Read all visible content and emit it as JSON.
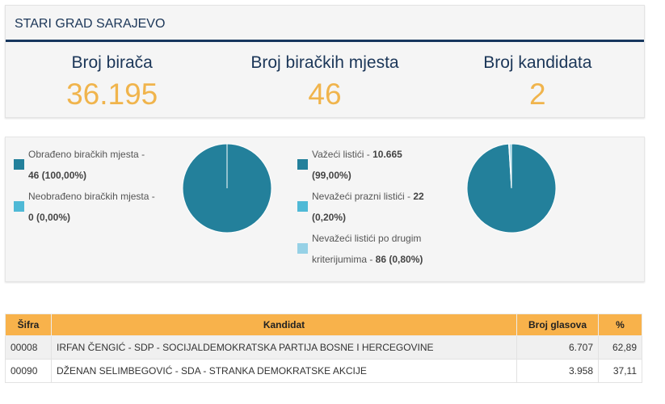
{
  "header": {
    "title": "STARI GRAD SARAJEVO"
  },
  "stats": [
    {
      "label": "Broj birača",
      "value": "36.195"
    },
    {
      "label": "Broj biračkih mjesta",
      "value": "46"
    },
    {
      "label": "Broj kandidata",
      "value": "2"
    }
  ],
  "colors": {
    "accent": "#f0b44c",
    "navy": "#17375e",
    "teal": "#23809b",
    "light_blue": "#4fb9d6",
    "pale_blue": "#96d1e6"
  },
  "chart_data": [
    {
      "type": "pie",
      "series": [
        {
          "label_line1": "Obrađeno biračkih mjesta -",
          "label_line2": "46 (100,00%)",
          "value": 100.0,
          "color": "#23809b"
        },
        {
          "label_line1": "Neobrađeno biračkih mjesta -",
          "label_line2": "0 (0,00%)",
          "value": 0.0,
          "color": "#4fb9d6"
        }
      ]
    },
    {
      "type": "pie",
      "series": [
        {
          "label_line1_text": "Važeći listići - ",
          "label_line1_bold": "10.665",
          "label_line2": "(99,00%)",
          "value": 99.0,
          "color": "#23809b"
        },
        {
          "label_line1_text": "Nevažeći prazni listići - ",
          "label_line1_bold": "22",
          "label_line2": "(0,20%)",
          "value": 0.2,
          "color": "#4fb9d6"
        },
        {
          "label_line1_text": "Nevažeći listići po drugim",
          "label_line1_bold": "",
          "label_line2_text": "kriterijumima - ",
          "label_line2": "86 (0,80%)",
          "value": 0.8,
          "color": "#96d1e6"
        }
      ]
    }
  ],
  "table": {
    "columns": [
      "Šifra",
      "Kandidat",
      "Broj glasova",
      "%"
    ],
    "rows": [
      {
        "code": "00008",
        "name": "IRFAN ČENGIĆ - SDP - SOCIJALDEMOKRATSKA PARTIJA BOSNE I HERCEGOVINE",
        "votes": "6.707",
        "pct": "62,89"
      },
      {
        "code": "00090",
        "name": "DŽENAN SELIMBEGOVIĆ - SDA - STRANKA DEMOKRATSKE AKCIJE",
        "votes": "3.958",
        "pct": "37,11"
      }
    ]
  }
}
